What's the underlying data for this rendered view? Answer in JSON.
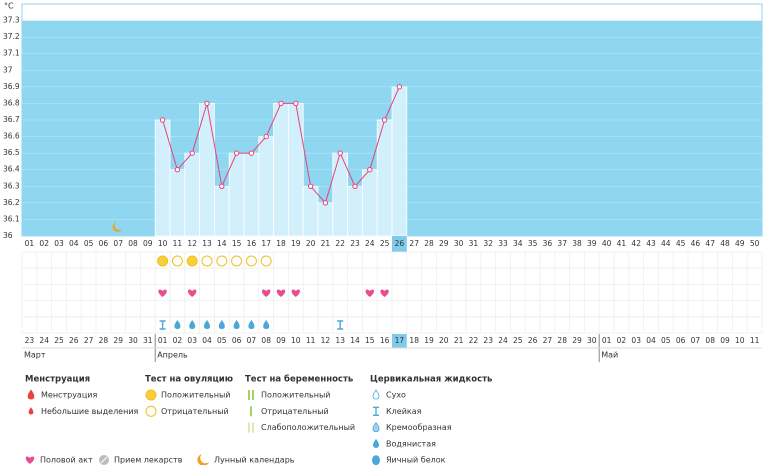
{
  "chart_data": {
    "type": "line",
    "y_unit": "°C",
    "categories": [
      "01",
      "02",
      "03",
      "04",
      "05",
      "06",
      "07",
      "08",
      "09",
      "10",
      "11",
      "12",
      "13",
      "14",
      "15",
      "16",
      "17",
      "18",
      "19",
      "20",
      "21",
      "22",
      "23",
      "24",
      "25",
      "26",
      "27",
      "28",
      "29",
      "30",
      "31",
      "32",
      "33",
      "34",
      "35",
      "36",
      "37",
      "38",
      "39",
      "40",
      "41",
      "42",
      "43",
      "44",
      "45",
      "46",
      "47",
      "48",
      "49",
      "50"
    ],
    "values": [
      null,
      null,
      null,
      null,
      null,
      null,
      null,
      null,
      null,
      36.7,
      36.4,
      36.5,
      36.8,
      36.3,
      36.5,
      36.5,
      36.6,
      36.8,
      36.8,
      36.3,
      36.2,
      36.5,
      36.3,
      36.4,
      36.7,
      36.9,
      null,
      null,
      null,
      null,
      null,
      null,
      null,
      null,
      null,
      null,
      null,
      null,
      null,
      null,
      null,
      null,
      null,
      null,
      null,
      null,
      null,
      null,
      null,
      null
    ],
    "ylim": [
      36,
      37.4
    ],
    "yticks": [
      36,
      36.1,
      36.2,
      36.3,
      36.4,
      36.5,
      36.6,
      36.7,
      36.8,
      36.9,
      37,
      37.1,
      37.2,
      37.3
    ],
    "grid": true,
    "line_color": "#e8417b",
    "bar_color": "#d2f0fc",
    "plot_color": "#8fd6f1",
    "today_index": 25,
    "moon_index": 6,
    "dates": [
      "23",
      "24",
      "25",
      "26",
      "27",
      "28",
      "29",
      "30",
      "31",
      "01",
      "02",
      "03",
      "04",
      "05",
      "06",
      "07",
      "08",
      "09",
      "10",
      "11",
      "12",
      "13",
      "14",
      "15",
      "16",
      "17",
      "18",
      "19",
      "20",
      "21",
      "22",
      "23",
      "24",
      "25",
      "26",
      "27",
      "28",
      "29",
      "30",
      "01",
      "02",
      "03",
      "04",
      "05",
      "06",
      "07",
      "08",
      "09",
      "10",
      "11"
    ],
    "holidays": [
      3,
      4,
      10,
      11,
      17,
      18,
      24,
      31,
      32,
      38,
      39,
      45,
      46
    ],
    "holiday_color": "#e0245e",
    "months": [
      {
        "label": "Март",
        "start": 0
      },
      {
        "label": "Апрель",
        "start": 9
      },
      {
        "label": "Май",
        "start": 39
      }
    ],
    "ovulation_tests": [
      null,
      null,
      null,
      null,
      null,
      null,
      null,
      null,
      null,
      "positive",
      "negative",
      "positive",
      "negative",
      "negative",
      "negative",
      "negative",
      "negative"
    ],
    "intercourse": [
      9,
      11,
      16,
      17,
      18,
      23,
      24
    ],
    "fluid": [
      null,
      null,
      null,
      null,
      null,
      null,
      null,
      null,
      null,
      "sticky",
      "watery",
      "watery",
      "watery",
      "watery",
      "watery",
      "watery",
      "watery",
      null,
      null,
      null,
      null,
      "sticky"
    ]
  },
  "legend": {
    "groups": [
      {
        "title": "Менструация",
        "items": [
          "Менструация",
          "Небольшие выделения"
        ]
      },
      {
        "title": "Тест на овуляцию",
        "items": [
          "Положительный",
          "Отрицательный"
        ]
      },
      {
        "title": "Тест на беременность",
        "items": [
          "Положительный",
          "Отрицательный",
          "Слабоположительный"
        ]
      },
      {
        "title": "Цервикальная жидкость",
        "items": [
          "Сухо",
          "Клейкая",
          "Кремообразная",
          "Водянистая",
          "Яичный белок"
        ]
      }
    ],
    "other": [
      "Половой акт",
      "Прием лекарств",
      "Лунный календарь"
    ]
  }
}
